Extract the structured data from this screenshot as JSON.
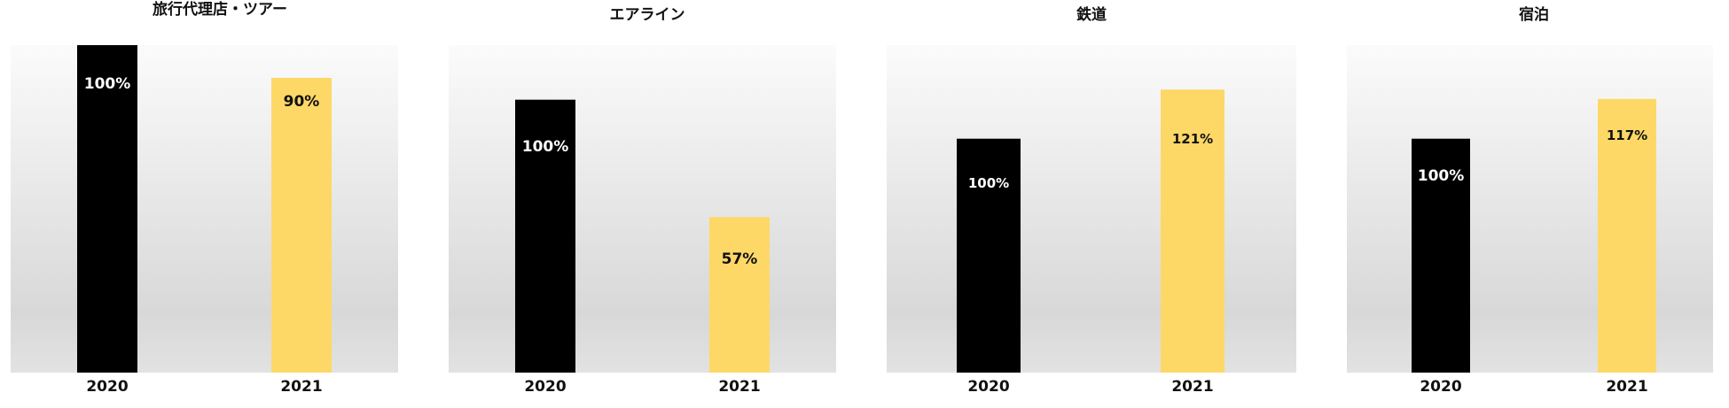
{
  "colors": {
    "bar_2020": "#000000",
    "bar_2021": "#FDD867",
    "label_on_dark": "#ffffff",
    "label_on_light": "#111111",
    "plot_bg_top": "#fbfbfb",
    "plot_bg_bottom": "#d8d8d8"
  },
  "chart_data": [
    {
      "type": "bar",
      "title": "旅行代理店・ツアー",
      "categories": [
        "2020",
        "2021"
      ],
      "values": [
        100,
        90
      ],
      "data_labels": [
        "100%",
        "90%"
      ],
      "ylim": [
        0,
        100
      ],
      "legend": "none",
      "grid": false
    },
    {
      "type": "bar",
      "title": "エアライン",
      "categories": [
        "2020",
        "2021"
      ],
      "values": [
        100,
        57
      ],
      "data_labels": [
        "100%",
        "57%"
      ],
      "ylim": [
        0,
        120
      ],
      "legend": "none",
      "grid": false
    },
    {
      "type": "bar",
      "title": "鉄道",
      "categories": [
        "2020",
        "2021"
      ],
      "values": [
        100,
        121
      ],
      "data_labels": [
        "100%",
        "121%"
      ],
      "ylim": [
        0,
        140
      ],
      "legend": "none",
      "grid": false
    },
    {
      "type": "bar",
      "title": "宿泊",
      "categories": [
        "2020",
        "2021"
      ],
      "values": [
        100,
        117
      ],
      "data_labels": [
        "100%",
        "117%"
      ],
      "ylim": [
        0,
        140
      ],
      "legend": "none",
      "grid": false
    }
  ]
}
